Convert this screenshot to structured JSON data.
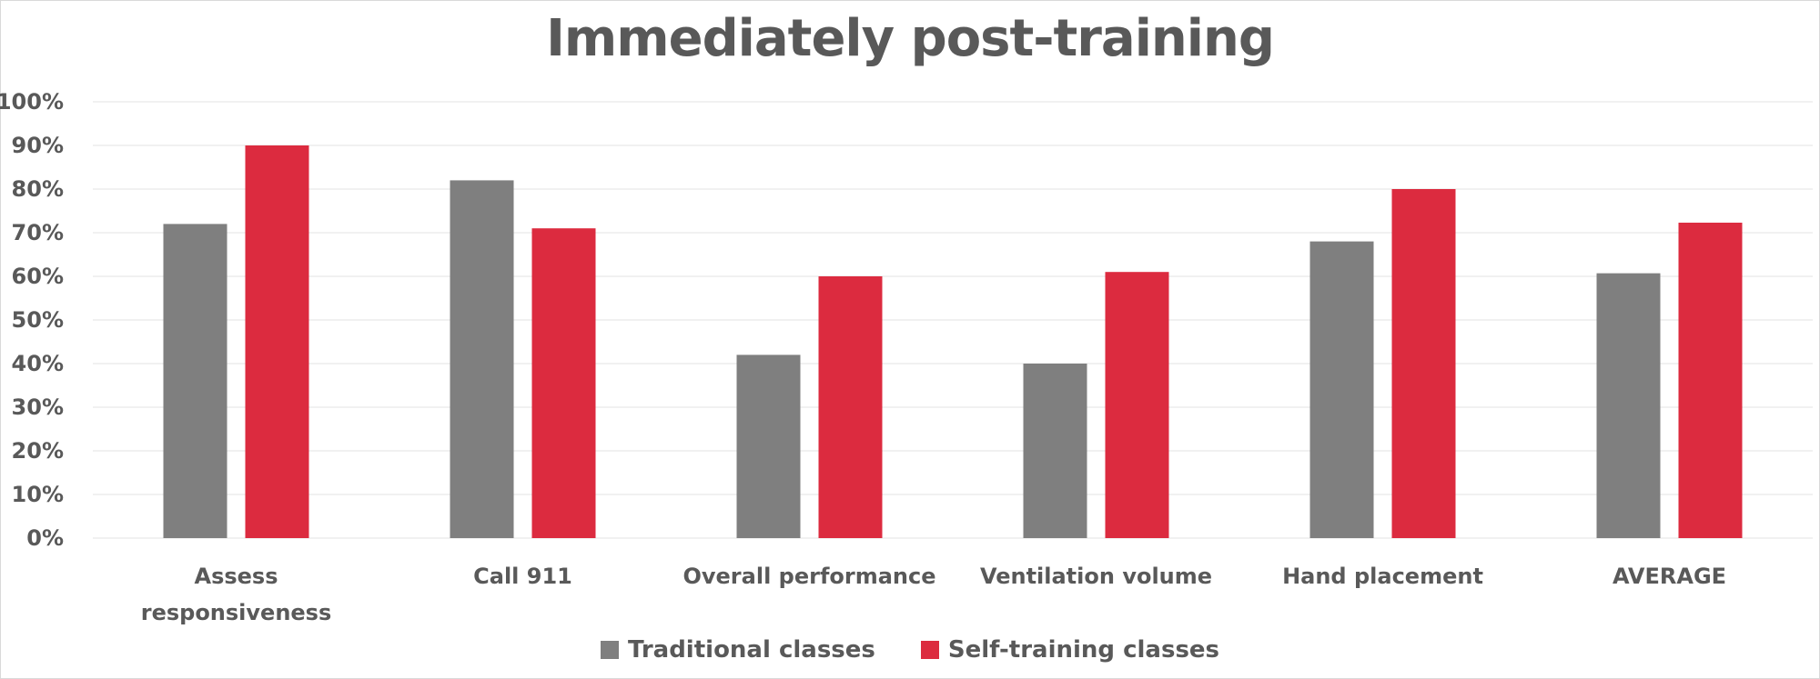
{
  "chart_data": {
    "type": "bar",
    "title": "Immediately post-training",
    "categories": [
      [
        "Assess",
        "responsiveness"
      ],
      [
        "Call 911"
      ],
      [
        "Overall performance"
      ],
      [
        "Ventilation volume"
      ],
      [
        "Hand placement"
      ],
      [
        "AVERAGE"
      ]
    ],
    "series": [
      {
        "name": "Traditional classes",
        "color": "#7f7f7f",
        "values": [
          72,
          82,
          42,
          40,
          68,
          60.7
        ]
      },
      {
        "name": "Self-training classes",
        "color": "#dc2b3f",
        "values": [
          90,
          71,
          60,
          61,
          80,
          72.3
        ]
      }
    ],
    "yticks": [
      "0%",
      "10%",
      "20%",
      "30%",
      "40%",
      "50%",
      "60%",
      "70%",
      "80%",
      "90%",
      "100%"
    ],
    "ylim": [
      0,
      100
    ],
    "grid": true,
    "legend_position": "bottom"
  }
}
